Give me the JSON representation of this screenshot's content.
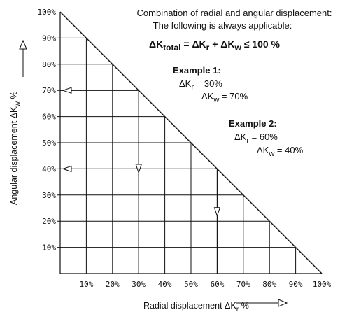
{
  "chart_data": {
    "type": "line",
    "title": "",
    "xlabel": "Radial displacement ΔKr %",
    "xlabel_main": "Radial displacement ΔK",
    "xlabel_sub": "r",
    "xlabel_tail": " %",
    "ylabel": "Angular displacement ΔKw %",
    "ylabel_main": "Angular displacement ΔK",
    "ylabel_sub": "w",
    "ylabel_tail": " %",
    "xlim": [
      0,
      100
    ],
    "ylim": [
      0,
      100
    ],
    "grid": true,
    "x_ticks": [
      "10%",
      "20%",
      "30%",
      "40%",
      "50%",
      "60%",
      "70%",
      "80%",
      "90%",
      "100%"
    ],
    "y_ticks": [
      "10%",
      "20%",
      "30%",
      "40%",
      "50%",
      "60%",
      "70%",
      "80%",
      "90%",
      "100%"
    ],
    "x_tick_values": [
      10,
      20,
      30,
      40,
      50,
      60,
      70,
      80,
      90,
      100
    ],
    "y_tick_values": [
      10,
      20,
      30,
      40,
      50,
      60,
      70,
      80,
      90,
      100
    ],
    "series": [
      {
        "x": [
          0,
          100
        ],
        "y": [
          100,
          0
        ]
      }
    ],
    "examples": [
      {
        "kr": 30,
        "kw": 70
      },
      {
        "kr": 60,
        "kw": 40
      }
    ]
  },
  "info": {
    "line1": "Combination of radial and angular displacement:",
    "line2": "The following is always applicable:",
    "formula": {
      "d1": "ΔK",
      "s1": "total",
      "eq": " = ΔK",
      "s2": "r",
      "plus": " + ΔK",
      "s3": "w",
      "tail": " ≤ 100 %"
    }
  },
  "example1": {
    "title": "Example 1:",
    "kr_pre": "ΔK",
    "kr_sub": "r",
    "kr_val": " = 30%",
    "kw_pre": "ΔK",
    "kw_sub": "w",
    "kw_val": " = 70%"
  },
  "example2": {
    "title": "Example 2:",
    "kr_pre": "ΔK",
    "kr_sub": "r",
    "kr_val": " = 60%",
    "kw_pre": "ΔK",
    "kw_sub": "w",
    "kw_val": " = 40%"
  }
}
